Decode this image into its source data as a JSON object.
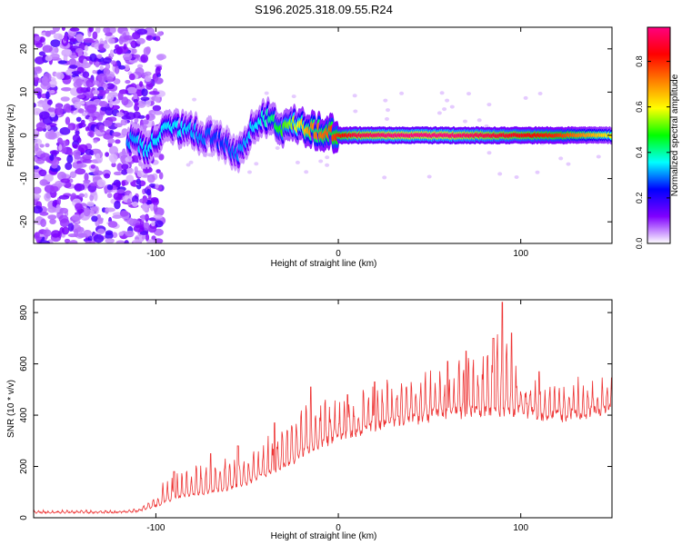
{
  "chart_data": [
    {
      "type": "heatmap",
      "title": "S196.2025.318.09.55.R24",
      "xlabel": "Height of straight line (km)",
      "ylabel": "Frequency (Hz)",
      "xlim": [
        -167,
        150
      ],
      "ylim": [
        -25,
        25
      ],
      "xticks": [
        -100,
        0,
        100
      ],
      "yticks": [
        -20,
        -10,
        0,
        10,
        20
      ],
      "colorbar": {
        "label": "Normalized spectral amplitude",
        "range": [
          0,
          0.95
        ],
        "ticks": [
          "0.0",
          "0.2",
          "0.4",
          "0.6",
          "0.8"
        ],
        "tick_values": [
          0,
          0.2,
          0.4,
          0.6,
          0.8
        ],
        "colors": [
          "#ffffff",
          "#8000ff",
          "#0000ff",
          "#00ffff",
          "#00ff00",
          "#ffff00",
          "#ff8000",
          "#ff0000",
          "#ff0080"
        ]
      },
      "ridge": {
        "x": [
          -115,
          -105,
          -95,
          -85,
          -75,
          -65,
          -55,
          -45,
          -38,
          -30,
          -25,
          -15,
          -5,
          0,
          10,
          30,
          60,
          80,
          100,
          120,
          150
        ],
        "freq": [
          -1,
          -3,
          1,
          2,
          0,
          -1,
          -5,
          3,
          4,
          2,
          3,
          1,
          1,
          0,
          0,
          0,
          0,
          0,
          0,
          0,
          0
        ],
        "amplitude": [
          0.3,
          0.35,
          0.35,
          0.35,
          0.3,
          0.25,
          0.3,
          0.35,
          0.4,
          0.5,
          0.55,
          0.7,
          0.75,
          0.8,
          0.9,
          0.95,
          0.95,
          0.9,
          0.85,
          0.8,
          0.6
        ]
      }
    },
    {
      "type": "line",
      "xlabel": "Height of straight line (km)",
      "ylabel": "SNR (10 * v/v)",
      "xlim": [
        -167,
        150
      ],
      "ylim": [
        0,
        850
      ],
      "xticks": [
        -100,
        0,
        100
      ],
      "yticks": [
        0,
        200,
        400,
        600,
        800
      ],
      "series": [
        {
          "name": "SNR",
          "color": "#ee3333",
          "x": [
            -167,
            -150,
            -120,
            -110,
            -100,
            -95,
            -90,
            -85,
            -80,
            -75,
            -70,
            -65,
            -60,
            -55,
            -50,
            -45,
            -40,
            -35,
            -30,
            -25,
            -20,
            -15,
            -10,
            -5,
            0,
            5,
            10,
            15,
            20,
            25,
            30,
            40,
            50,
            60,
            70,
            80,
            90,
            100,
            110,
            120,
            130,
            140,
            150
          ],
          "baseline": [
            20,
            20,
            20,
            25,
            45,
            60,
            75,
            85,
            90,
            95,
            100,
            110,
            115,
            125,
            135,
            150,
            165,
            180,
            200,
            220,
            250,
            270,
            290,
            300,
            310,
            320,
            330,
            345,
            355,
            365,
            375,
            385,
            395,
            405,
            410,
            415,
            420,
            415,
            400,
            395,
            400,
            410,
            420
          ],
          "peaks": [
            30,
            30,
            30,
            35,
            90,
            150,
            180,
            190,
            220,
            240,
            250,
            230,
            280,
            280,
            260,
            300,
            320,
            360,
            420,
            450,
            500,
            480,
            460,
            470,
            480,
            480,
            470,
            510,
            520,
            540,
            540,
            580,
            590,
            560,
            650,
            700,
            840,
            600,
            560,
            550,
            540,
            550,
            560
          ],
          "spikes": [
            [
              -90,
              180
            ],
            [
              -70,
              250
            ],
            [
              -55,
              280
            ],
            [
              -35,
              370
            ],
            [
              -15,
              510
            ],
            [
              5,
              480
            ],
            [
              20,
              530
            ],
            [
              60,
              610
            ],
            [
              70,
              650
            ],
            [
              85,
              700
            ],
            [
              90,
              840
            ],
            [
              95,
              720
            ],
            [
              110,
              570
            ]
          ]
        }
      ]
    }
  ]
}
